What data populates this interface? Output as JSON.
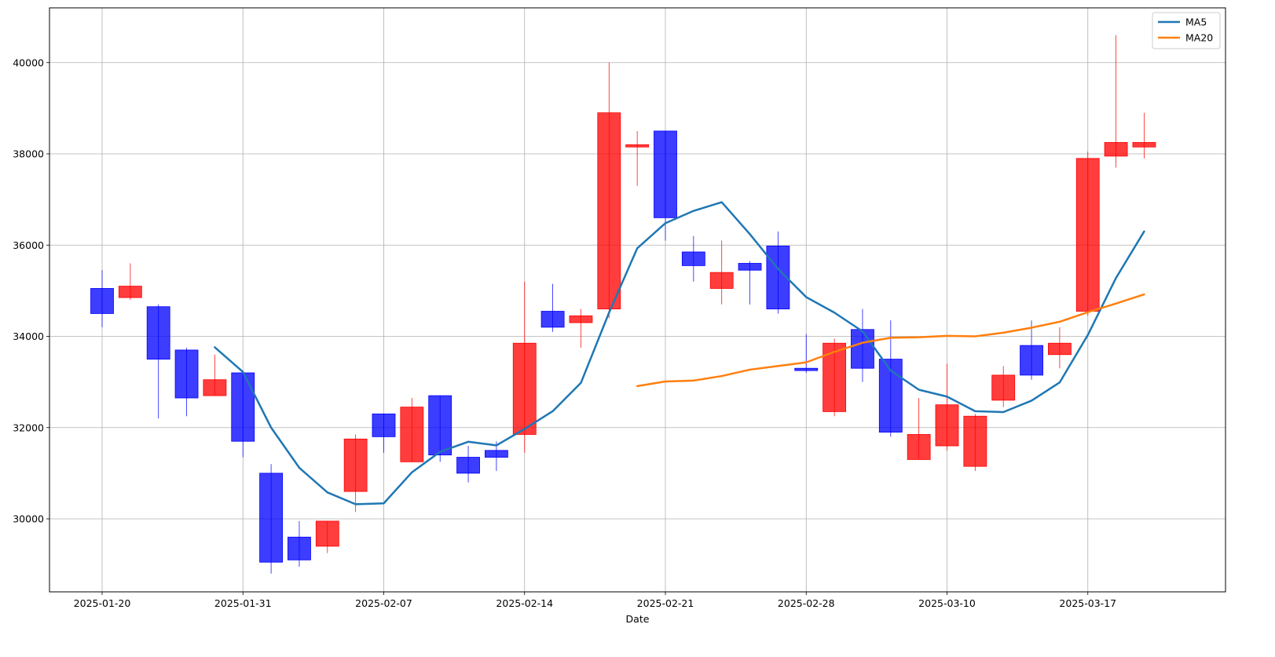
{
  "chart_data": {
    "type": "candlestick",
    "xlabel": "Date",
    "ylabel": "",
    "ylim": [
      28400,
      41200
    ],
    "grid": true,
    "legend_position": "top-right",
    "x_tick_labels": [
      "2025-01-20",
      "2025-01-31",
      "2025-02-07",
      "2025-02-14",
      "2025-02-21",
      "2025-02-28",
      "2025-03-10",
      "2025-03-17"
    ],
    "x_tick_indices": [
      0,
      5,
      10,
      15,
      20,
      25,
      30,
      35
    ],
    "y_ticks": [
      30000,
      32000,
      34000,
      36000,
      38000,
      40000
    ],
    "y_tick_labels": [
      "30000",
      "32000",
      "34000",
      "36000",
      "38000",
      "40000"
    ],
    "colors": {
      "up": "#ff0000",
      "down": "#0000ff",
      "ma5": "#1f77b4",
      "ma20": "#ff7f0e"
    },
    "candles": [
      {
        "o": 35050,
        "h": 35450,
        "l": 34200,
        "c": 34500
      },
      {
        "o": 34850,
        "h": 35600,
        "l": 34800,
        "c": 35100
      },
      {
        "o": 34650,
        "h": 34700,
        "l": 32200,
        "c": 33500
      },
      {
        "o": 33700,
        "h": 33750,
        "l": 32250,
        "c": 32650
      },
      {
        "o": 32700,
        "h": 33600,
        "l": 32700,
        "c": 33050
      },
      {
        "o": 33200,
        "h": 33200,
        "l": 31350,
        "c": 31700
      },
      {
        "o": 31000,
        "h": 31200,
        "l": 28800,
        "c": 29050
      },
      {
        "o": 29600,
        "h": 29950,
        "l": 28950,
        "c": 29100
      },
      {
        "o": 29400,
        "h": 29950,
        "l": 29250,
        "c": 29950
      },
      {
        "o": 30600,
        "h": 31850,
        "l": 30150,
        "c": 31750
      },
      {
        "o": 32300,
        "h": 32300,
        "l": 31450,
        "c": 31800
      },
      {
        "o": 31250,
        "h": 32650,
        "l": 31250,
        "c": 32450
      },
      {
        "o": 32700,
        "h": 32700,
        "l": 31250,
        "c": 31400
      },
      {
        "o": 31350,
        "h": 31600,
        "l": 30800,
        "c": 31000
      },
      {
        "o": 31500,
        "h": 31700,
        "l": 31050,
        "c": 31350
      },
      {
        "o": 31850,
        "h": 35200,
        "l": 31450,
        "c": 33850
      },
      {
        "o": 34550,
        "h": 35150,
        "l": 34100,
        "c": 34200
      },
      {
        "o": 34300,
        "h": 34600,
        "l": 33750,
        "c": 34450
      },
      {
        "o": 34600,
        "h": 40000,
        "l": 34400,
        "c": 38900
      },
      {
        "o": 38150,
        "h": 38500,
        "l": 37300,
        "c": 38200
      },
      {
        "o": 38500,
        "h": 38500,
        "l": 36100,
        "c": 36600
      },
      {
        "o": 35850,
        "h": 36200,
        "l": 35200,
        "c": 35550
      },
      {
        "o": 35050,
        "h": 36100,
        "l": 34700,
        "c": 35400
      },
      {
        "o": 35600,
        "h": 35650,
        "l": 34700,
        "c": 35450
      },
      {
        "o": 35980,
        "h": 36300,
        "l": 34500,
        "c": 34600
      },
      {
        "o": 33300,
        "h": 34050,
        "l": 33200,
        "c": 33250
      },
      {
        "o": 32350,
        "h": 33950,
        "l": 32250,
        "c": 33850
      },
      {
        "o": 34150,
        "h": 34600,
        "l": 33000,
        "c": 33300
      },
      {
        "o": 33500,
        "h": 34350,
        "l": 31800,
        "c": 31900
      },
      {
        "o": 31300,
        "h": 32650,
        "l": 31300,
        "c": 31850
      },
      {
        "o": 31600,
        "h": 33400,
        "l": 31500,
        "c": 32500
      },
      {
        "o": 31150,
        "h": 32300,
        "l": 31050,
        "c": 32250
      },
      {
        "o": 32600,
        "h": 33350,
        "l": 32450,
        "c": 33150
      },
      {
        "o": 33800,
        "h": 34350,
        "l": 33050,
        "c": 33150
      },
      {
        "o": 33600,
        "h": 34200,
        "l": 33300,
        "c": 33850
      },
      {
        "o": 34550,
        "h": 38050,
        "l": 34450,
        "c": 37900
      },
      {
        "o": 37950,
        "h": 40600,
        "l": 37700,
        "c": 38250
      },
      {
        "o": 38150,
        "h": 38900,
        "l": 37900,
        "c": 38250
      }
    ],
    "series": [
      {
        "name": "MA5",
        "values": [
          null,
          null,
          null,
          null,
          33760,
          33220,
          32000,
          31120,
          30580,
          30320,
          30340,
          31020,
          31470,
          31690,
          31610,
          31970,
          32360,
          32980,
          34520,
          35930,
          36480,
          36750,
          36940,
          36240,
          35480,
          34860,
          34520,
          34110,
          33250,
          32830,
          32680,
          32360,
          32340,
          32590,
          32990,
          34030,
          35280,
          36300
        ]
      },
      {
        "name": "MA20",
        "values": [
          null,
          null,
          null,
          null,
          null,
          null,
          null,
          null,
          null,
          null,
          null,
          null,
          null,
          null,
          null,
          null,
          null,
          null,
          null,
          32910,
          33010,
          33030,
          33130,
          33270,
          33350,
          33430,
          33660,
          33860,
          33970,
          33980,
          34010,
          34000,
          34080,
          34190,
          34320,
          34530,
          34720,
          34920
        ]
      }
    ]
  }
}
